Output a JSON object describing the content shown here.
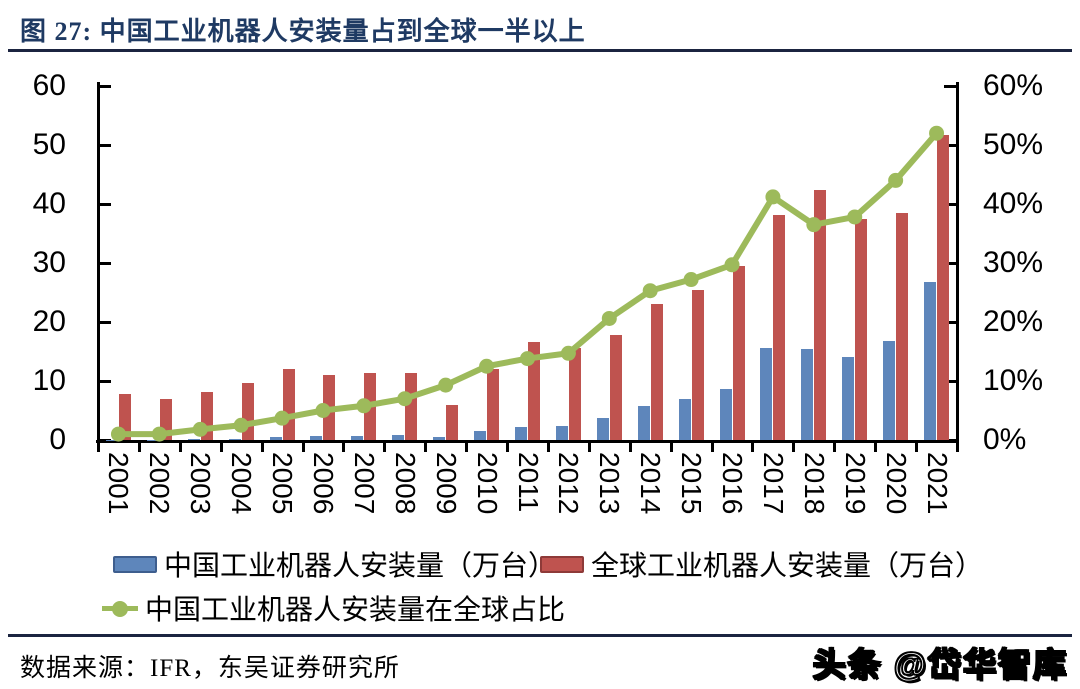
{
  "header": {
    "title": "图 27:  中国工业机器人安装量占到全球一半以上"
  },
  "chart_data": {
    "type": "bar",
    "subtype": "grouped-bars-with-line",
    "categories": [
      "2001",
      "2002",
      "2003",
      "2004",
      "2005",
      "2006",
      "2007",
      "2008",
      "2009",
      "2010",
      "2011",
      "2012",
      "2013",
      "2014",
      "2015",
      "2016",
      "2017",
      "2018",
      "2019",
      "2020",
      "2021"
    ],
    "series": [
      {
        "name": "中国工业机器人安装量（万台）",
        "type": "bar",
        "axis": "left",
        "color": "#5e86bb",
        "values": [
          0.07,
          0.07,
          0.14,
          0.2,
          0.45,
          0.6,
          0.66,
          0.79,
          0.55,
          1.5,
          2.26,
          2.3,
          3.66,
          5.7,
          6.9,
          8.7,
          15.6,
          15.4,
          14.1,
          16.8,
          26.8
        ]
      },
      {
        "name": "全球工业机器人安装量（万台）",
        "type": "bar",
        "axis": "left",
        "color": "#bf534f",
        "values": [
          7.8,
          6.9,
          8.1,
          9.7,
          12.0,
          11.1,
          11.4,
          11.3,
          6.0,
          12.1,
          16.6,
          15.6,
          17.8,
          23.0,
          25.4,
          29.5,
          38.2,
          42.3,
          37.5,
          38.5,
          51.7
        ]
      },
      {
        "name": "中国工业机器人安装量在全球占比",
        "type": "line",
        "axis": "right",
        "color": "#9dba5b",
        "values_pct": [
          1.0,
          1.0,
          1.8,
          2.5,
          3.7,
          5.0,
          5.8,
          7.0,
          9.3,
          12.5,
          13.8,
          14.7,
          20.6,
          25.3,
          27.2,
          29.7,
          41.2,
          36.5,
          37.8,
          44.0,
          52.0
        ]
      }
    ],
    "left_axis": {
      "min": 0,
      "max": 60,
      "tick_labels": [
        "0",
        "10",
        "20",
        "30",
        "40",
        "50",
        "60"
      ]
    },
    "right_axis": {
      "min": 0,
      "max": 60,
      "tick_labels": [
        "0%",
        "10%",
        "20%",
        "30%",
        "40%",
        "50%",
        "60%"
      ]
    },
    "grid": false,
    "legend_position": "bottom-left"
  },
  "footer": {
    "source": "数据来源：IFR，东吴证券研究所",
    "watermark": "头条 @岱华智库"
  }
}
